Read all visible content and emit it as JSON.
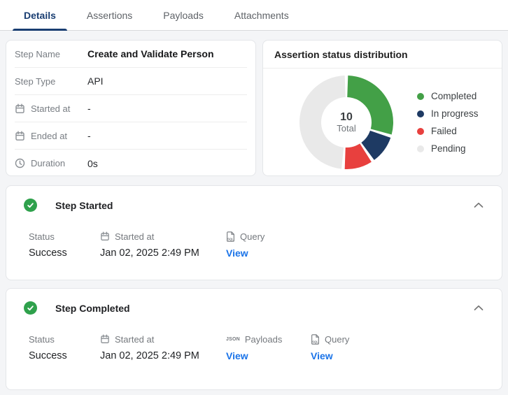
{
  "colors": {
    "accent_navy": "#1a3e72",
    "link_blue": "#1a73e8",
    "check_green": "#2fa14c",
    "page_bg": "#f4f5f7"
  },
  "tabs": [
    {
      "label": "Details",
      "active": true
    },
    {
      "label": "Assertions",
      "active": false
    },
    {
      "label": "Payloads",
      "active": false
    },
    {
      "label": "Attachments",
      "active": false
    }
  ],
  "details_card": {
    "rows": [
      {
        "label": "Step Name",
        "icon": null,
        "value": "Create and Validate Person"
      },
      {
        "label": "Step Type",
        "icon": null,
        "value": "API"
      },
      {
        "label": "Started at",
        "icon": "calendar-icon",
        "value": "-"
      },
      {
        "label": "Ended at",
        "icon": "calendar-icon",
        "value": "-"
      },
      {
        "label": "Duration",
        "icon": "clock-icon",
        "value": "0s"
      }
    ]
  },
  "chart_card": {
    "title": "Assertion status distribution",
    "center_value": "10",
    "center_label": "Total"
  },
  "chart_data": {
    "type": "pie",
    "donut": true,
    "title": "Assertion status distribution",
    "labels": [
      "Completed",
      "In progress",
      "Failed",
      "Pending"
    ],
    "values": [
      3,
      1,
      1,
      5
    ],
    "colors": [
      "#43a047",
      "#1e3a63",
      "#e8403e",
      "#e9e9e9"
    ],
    "total": 10,
    "center_text": {
      "value": "10",
      "label": "Total"
    },
    "legend_position": "right",
    "start_angle_deg": 0,
    "direction": "clockwise"
  },
  "sections": [
    {
      "title": "Step Started",
      "status_icon": "check-circle-icon",
      "collapse_icon": "chevron-up-icon",
      "fields": [
        {
          "label": "Status",
          "icon": null,
          "value": "Success",
          "type": "text"
        },
        {
          "label": "Started at",
          "icon": "calendar-icon",
          "value": "Jan 02, 2025 2:49 PM",
          "type": "text"
        },
        {
          "label": "Query",
          "icon": "sql-file-icon",
          "value": "View",
          "type": "link"
        }
      ]
    },
    {
      "title": "Step Completed",
      "status_icon": "check-circle-icon",
      "collapse_icon": "chevron-up-icon",
      "fields": [
        {
          "label": "Status",
          "icon": null,
          "value": "Success",
          "type": "text"
        },
        {
          "label": "Started at",
          "icon": "calendar-icon",
          "value": "Jan 02, 2025 2:49 PM",
          "type": "text"
        },
        {
          "label": "Payloads",
          "icon": "json-icon",
          "value": "View",
          "type": "link"
        },
        {
          "label": "Query",
          "icon": "sql-file-icon",
          "value": "View",
          "type": "link"
        }
      ]
    }
  ]
}
